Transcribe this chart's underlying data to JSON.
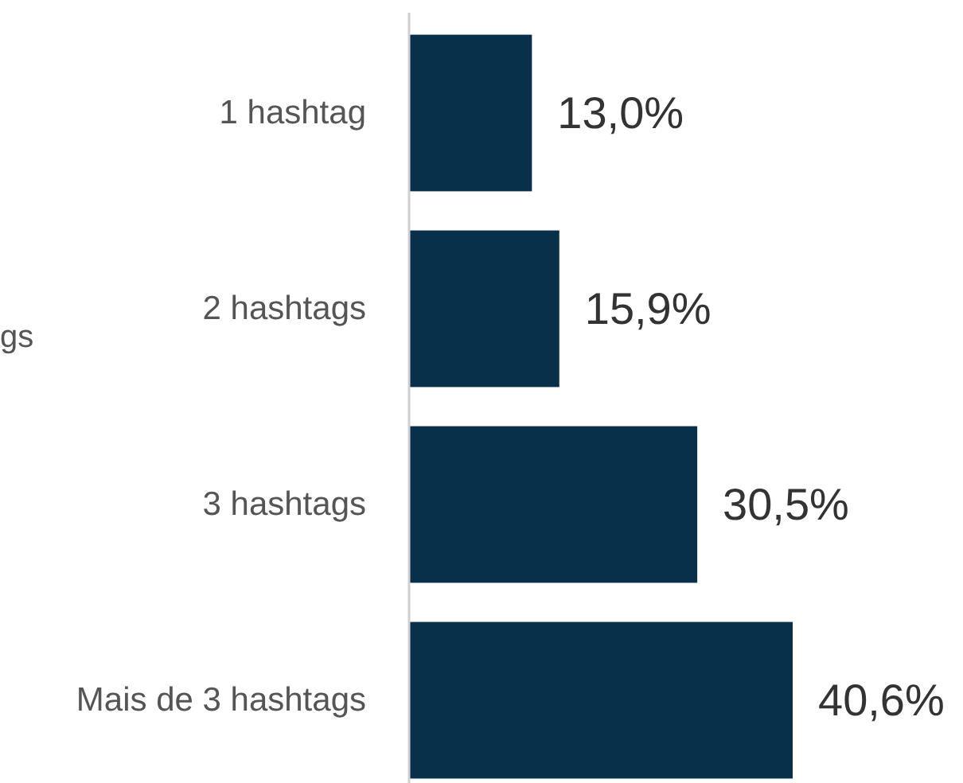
{
  "chart_data": {
    "type": "bar",
    "orientation": "horizontal",
    "ylabel": "gs",
    "categories": [
      "1 hashtag",
      "2 hashtags",
      "3 hashtags",
      "Mais de 3 hashtags"
    ],
    "values": [
      13.0,
      15.9,
      30.5,
      40.6
    ],
    "color": "#08304a",
    "value_labels": [
      "13,0%",
      "15,9%",
      "30,5%",
      "40,6%"
    ]
  }
}
